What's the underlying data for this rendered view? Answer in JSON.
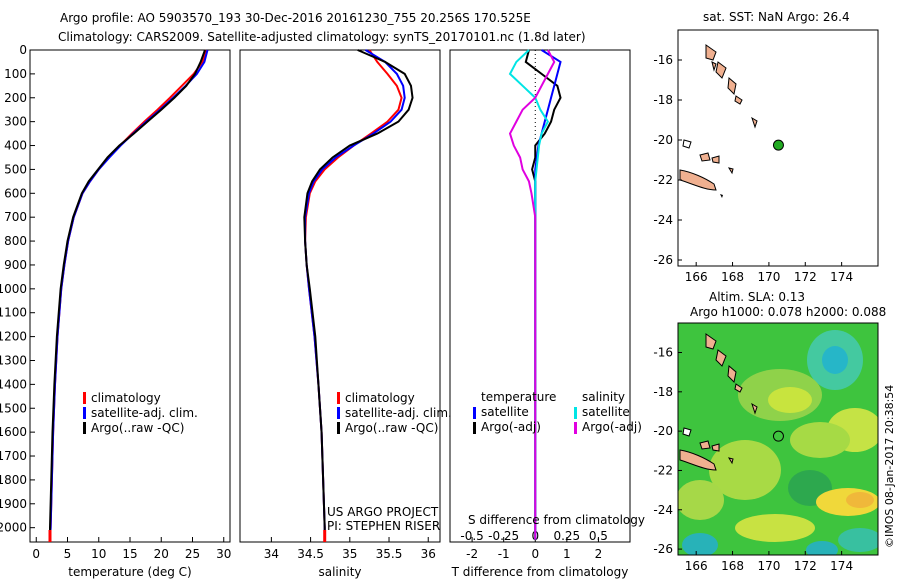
{
  "header": {
    "line1": "Argo profile: AO 5903570_193 30-Dec-2016 20161230_755 20.256S 170.525E",
    "line2": "Climatology: CARS2009. Satellite-adjusted climatology: synTS_20170101.nc (1.8d later)"
  },
  "side_label": "©IMOS 08-Jan-2017 20:38:54",
  "colors": {
    "climatology": "#ff0000",
    "satellite": "#0000ff",
    "argo": "#000000",
    "salinity_sat": "#00e5e5",
    "salinity_argo": "#e000e0",
    "land": "#f0b090",
    "float_marker": "#22aa22"
  },
  "legends": {
    "temperature_panel": [
      "climatology",
      "satellite-adj. clim.",
      "Argo(..raw -QC)"
    ],
    "salinity_panel": [
      "climatology",
      "satellite-adj. clim.",
      "Argo(..raw -QC)"
    ],
    "diff_temperature_title": "temperature",
    "diff_temperature_items": [
      "satellite",
      "Argo(-adj)"
    ],
    "diff_salinity_title": "salinity",
    "diff_salinity_items": [
      "satellite",
      "Argo(-adj)"
    ]
  },
  "notes": {
    "project": "US ARGO PROJECT",
    "pi": "PI: STEPHEN RISER",
    "s_diff_label": "S difference from climatology"
  },
  "map_top": {
    "title": "sat. SST: NaN Argo: 26.4",
    "xticks": [
      166,
      168,
      170,
      172,
      174
    ],
    "yticks": [
      -16,
      -18,
      -20,
      -22,
      -24,
      -26
    ],
    "xlim": [
      165,
      176
    ],
    "ylim": [
      -26.3,
      -14.5
    ],
    "float_position": {
      "lon": 170.525,
      "lat": -20.256
    }
  },
  "map_bottom": {
    "title1": "Altim. SLA: 0.13",
    "title2": "Argo h1000: 0.078 h2000: 0.088",
    "xticks": [
      166,
      168,
      170,
      172,
      174
    ],
    "yticks": [
      -16,
      -18,
      -20,
      -22,
      -24,
      -26
    ],
    "xlim": [
      165,
      176
    ],
    "ylim": [
      -26.3,
      -14.5
    ],
    "float_position": {
      "lon": 170.525,
      "lat": -20.256
    }
  },
  "chart_data": [
    {
      "type": "line",
      "xlabel": "temperature (deg C)",
      "xlim": [
        -1,
        31
      ],
      "xticks": [
        0,
        5,
        10,
        15,
        20,
        25,
        30
      ],
      "ylim": [
        2060,
        0
      ],
      "yticks": [
        0,
        100,
        200,
        300,
        400,
        500,
        600,
        700,
        800,
        900,
        1000,
        1100,
        1200,
        1300,
        1400,
        1500,
        1600,
        1700,
        1800,
        1900,
        2000
      ],
      "depth": [
        0,
        50,
        100,
        150,
        200,
        250,
        300,
        350,
        400,
        450,
        500,
        550,
        600,
        700,
        800,
        900,
        1000,
        1200,
        1400,
        1600,
        1800,
        2000,
        2050
      ],
      "series": [
        {
          "name": "climatology",
          "values": [
            27.2,
            26.6,
            25.2,
            23.3,
            21.4,
            19.4,
            17.3,
            15.3,
            13.4,
            11.6,
            10.0,
            8.6,
            7.4,
            6.0,
            5.1,
            4.5,
            4.0,
            3.4,
            3.0,
            2.7,
            2.5,
            2.3,
            2.2
          ]
        },
        {
          "name": "satellite-adj. clim.",
          "values": [
            27.4,
            26.9,
            25.7,
            23.9,
            21.9,
            19.8,
            17.6,
            15.5,
            13.5,
            11.7,
            10.0,
            8.6,
            7.4,
            6.0,
            5.1,
            4.5,
            4.0,
            3.4,
            3.0,
            2.7,
            2.5,
            2.3,
            2.2
          ]
        },
        {
          "name": "Argo(..raw -QC)",
          "values": [
            27.0,
            26.3,
            25.4,
            24.0,
            22.1,
            20.0,
            17.8,
            15.6,
            13.3,
            11.4,
            9.9,
            8.4,
            7.3,
            5.9,
            5.0,
            4.4,
            3.9,
            3.3,
            2.9,
            2.6,
            2.4,
            2.2,
            2.2
          ]
        }
      ]
    },
    {
      "type": "line",
      "xlabel": "salinity",
      "xlim": [
        33.6,
        36.15
      ],
      "xticks": [
        34,
        34.5,
        35,
        35.5,
        36
      ],
      "ylim": [
        2060,
        0
      ],
      "depth": [
        0,
        50,
        100,
        150,
        200,
        250,
        300,
        350,
        400,
        450,
        500,
        550,
        600,
        700,
        800,
        900,
        1000,
        1200,
        1400,
        1600,
        1800,
        2000,
        2050
      ],
      "series": [
        {
          "name": "climatology",
          "values": [
            35.25,
            35.35,
            35.48,
            35.6,
            35.66,
            35.62,
            35.48,
            35.27,
            35.05,
            34.85,
            34.68,
            34.56,
            34.49,
            34.44,
            34.43,
            34.45,
            34.48,
            34.55,
            34.6,
            34.64,
            34.66,
            34.68,
            34.68
          ]
        },
        {
          "name": "satellite-adj. clim.",
          "values": [
            35.2,
            35.45,
            35.6,
            35.68,
            35.7,
            35.66,
            35.52,
            35.3,
            35.05,
            34.82,
            34.65,
            34.54,
            34.48,
            34.43,
            34.43,
            34.45,
            34.48,
            34.55,
            34.6,
            34.64,
            34.66,
            34.68,
            34.68
          ]
        },
        {
          "name": "Argo(..raw -QC)",
          "values": [
            35.1,
            35.45,
            35.7,
            35.78,
            35.8,
            35.75,
            35.62,
            35.35,
            35.0,
            34.78,
            34.62,
            34.52,
            34.46,
            34.42,
            34.43,
            34.45,
            34.49,
            34.56,
            34.6,
            34.64,
            34.66,
            34.68,
            34.68
          ]
        }
      ]
    },
    {
      "type": "line",
      "xlabel": "T difference from climatology",
      "xlim": [
        -2.7,
        3.0
      ],
      "xticks": [
        -2,
        -1,
        0,
        1,
        2
      ],
      "secondary_xlabel": "S difference from climatology",
      "secondary_xticks": [
        -0.5,
        -0.25,
        0,
        0.25,
        0.5
      ],
      "ylim": [
        2060,
        0
      ],
      "depth": [
        0,
        50,
        100,
        150,
        200,
        250,
        300,
        350,
        400,
        450,
        500,
        550,
        600,
        700,
        800,
        900,
        1000,
        1200,
        1400,
        1600,
        1800,
        2000,
        2050
      ],
      "series": [
        {
          "name": "temperature satellite",
          "values": [
            0.2,
            0.8,
            0.7,
            0.6,
            0.5,
            0.4,
            0.3,
            0.2,
            0.1,
            0.05,
            0.0,
            0.0,
            0.0,
            0.0,
            0.0,
            0.0,
            0.0,
            0.0,
            0.0,
            0.0,
            0.0,
            0.0,
            0.0
          ]
        },
        {
          "name": "temperature Argo(-adj)",
          "values": [
            -0.2,
            -0.3,
            0.2,
            0.7,
            0.8,
            0.6,
            0.5,
            0.3,
            0.0,
            0.0,
            -0.1,
            0.0,
            0.0,
            0.0,
            0.0,
            0.0,
            0.0,
            0.0,
            0.0,
            0.0,
            0.0,
            0.0,
            0.0
          ]
        },
        {
          "name": "salinity satellite",
          "values": [
            -0.05,
            -0.15,
            -0.2,
            -0.1,
            0.0,
            0.04,
            0.1,
            0.05,
            0.03,
            0.02,
            0.01,
            0.0,
            0.0,
            0.0,
            0.0,
            0.0,
            0.0,
            0.0,
            0.0,
            0.0,
            0.0,
            0.0,
            0.0
          ]
        },
        {
          "name": "salinity Argo(-adj)",
          "values": [
            0.1,
            0.15,
            0.1,
            0.05,
            0.0,
            -0.1,
            -0.15,
            -0.2,
            -0.17,
            -0.12,
            -0.1,
            -0.05,
            -0.03,
            0.0,
            0.0,
            0.0,
            0.0,
            0.0,
            0.0,
            0.0,
            0.0,
            0.0,
            0.0
          ]
        }
      ]
    }
  ]
}
